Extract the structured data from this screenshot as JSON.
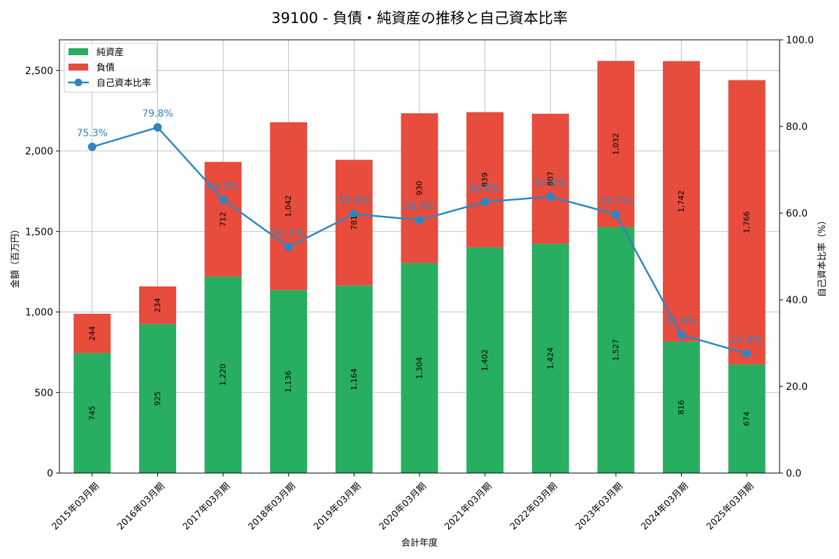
{
  "title": "39100 - 負債・純資産の推移と自己資本比率",
  "colors": {
    "net_assets": "#27ae60",
    "liabilities": "#e74c3c",
    "ratio": "#2e86c1",
    "grid": "#b0b0b0"
  },
  "chart_data": {
    "type": "bar",
    "stacked": true,
    "title": "39100 - 負債・純資産の推移と自己資本比率",
    "xlabel": "会計年度",
    "ylabel": "金額（百万円）",
    "y2label": "自己資本比率（%）",
    "categories": [
      "2015年03月期",
      "2016年03月期",
      "2017年03月期",
      "2018年03月期",
      "2019年03月期",
      "2020年03月期",
      "2021年03月期",
      "2022年03月期",
      "2023年03月期",
      "2024年03月期",
      "2025年03月期"
    ],
    "ylim": [
      0,
      2690
    ],
    "y2lim": [
      0,
      100
    ],
    "yticks": [
      0,
      500,
      1000,
      1500,
      2000,
      2500
    ],
    "yticklabels": [
      "0",
      "500",
      "1,000",
      "1,500",
      "2,000",
      "2,500"
    ],
    "y2ticks": [
      0,
      20,
      40,
      60,
      80,
      100
    ],
    "y2ticklabels": [
      "0.0",
      "20.0",
      "40.0",
      "60.0",
      "80.0",
      "100.0"
    ],
    "grid": true,
    "legend_position": "top-left",
    "series": [
      {
        "name": "純資産",
        "type": "bar",
        "axis": "left",
        "values": [
          745,
          925,
          1220,
          1136,
          1164,
          1304,
          1402,
          1424,
          1527,
          816,
          674
        ],
        "labels": [
          "745",
          "925",
          "1,220",
          "1,136",
          "1,164",
          "1,304",
          "1,402",
          "1,424",
          "1,527",
          "816",
          "674"
        ]
      },
      {
        "name": "負債",
        "type": "bar",
        "axis": "left",
        "values": [
          244,
          234,
          712,
          1042,
          781,
          930,
          839,
          807,
          1032,
          1742,
          1766
        ],
        "labels": [
          "244",
          "234",
          "712",
          "1,042",
          "781",
          "930",
          "839",
          "807",
          "1,032",
          "1,742",
          "1,766"
        ]
      },
      {
        "name": "自己資本比率",
        "type": "line",
        "axis": "right",
        "values": [
          75.3,
          79.8,
          63.1,
          52.2,
          59.8,
          58.4,
          62.6,
          63.8,
          59.7,
          31.9,
          27.6
        ],
        "labels": [
          "75.3%",
          "79.8%",
          "63.1%",
          "52.2%",
          "59.8%",
          "58.4%",
          "62.6%",
          "63.8%",
          "59.7%",
          "31.9%",
          "27.6%"
        ]
      }
    ]
  }
}
